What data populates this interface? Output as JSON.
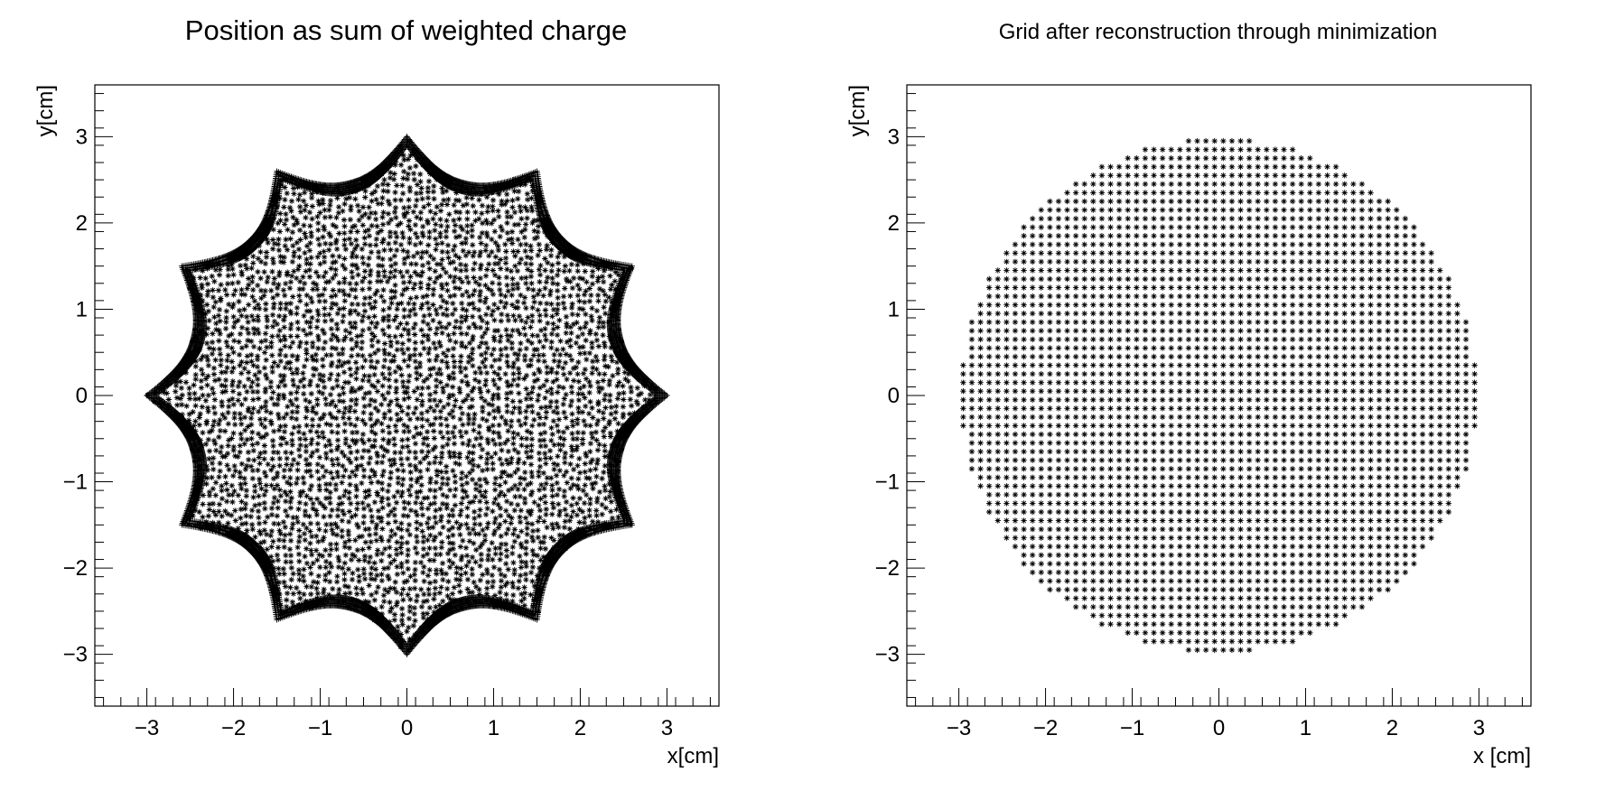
{
  "chart_data": [
    {
      "type": "scatter",
      "title": "Position as sum of weighted charge",
      "xlabel": "x[cm]",
      "ylabel": "y[cm]",
      "xlim": [
        -3.6,
        3.6
      ],
      "ylim": [
        -3.6,
        3.6
      ],
      "xticks": [
        -3,
        -2,
        -1,
        0,
        1,
        2,
        3
      ],
      "yticks": [
        -3,
        -2,
        -1,
        0,
        1,
        2,
        3
      ],
      "xtick_labels": [
        "−3",
        "−2",
        "−1",
        "0",
        "1",
        "2",
        "3"
      ],
      "ytick_labels": [
        "−3",
        "−2",
        "−1",
        "0",
        "1",
        "2",
        "3"
      ],
      "grid": false,
      "marker": "star",
      "marker_color": "#000000",
      "point_distribution": "dense grid of points filling a 12-lobed scalloped star of outer radius 3.0 cm; 12 points spaced 30 degrees apart starting at 0 degrees; concave edges between points reaching inward to about 2.55 cm"
    },
    {
      "type": "scatter",
      "title": "Grid after reconstruction through minimization",
      "xlabel": "x [cm]",
      "ylabel": "y[cm]",
      "xlim": [
        -3.6,
        3.6
      ],
      "ylim": [
        -3.6,
        3.6
      ],
      "xticks": [
        -3,
        -2,
        -1,
        0,
        1,
        2,
        3
      ],
      "yticks": [
        -3,
        -2,
        -1,
        0,
        1,
        2,
        3
      ],
      "xtick_labels": [
        "−3",
        "−2",
        "−1",
        "0",
        "1",
        "2",
        "3"
      ],
      "ytick_labels": [
        "−3",
        "−2",
        "−1",
        "0",
        "1",
        "2",
        "3"
      ],
      "grid": false,
      "marker": "star",
      "marker_color": "#000000",
      "point_distribution": "regular square grid of points filling a disk of radius about 3.0 cm"
    }
  ]
}
